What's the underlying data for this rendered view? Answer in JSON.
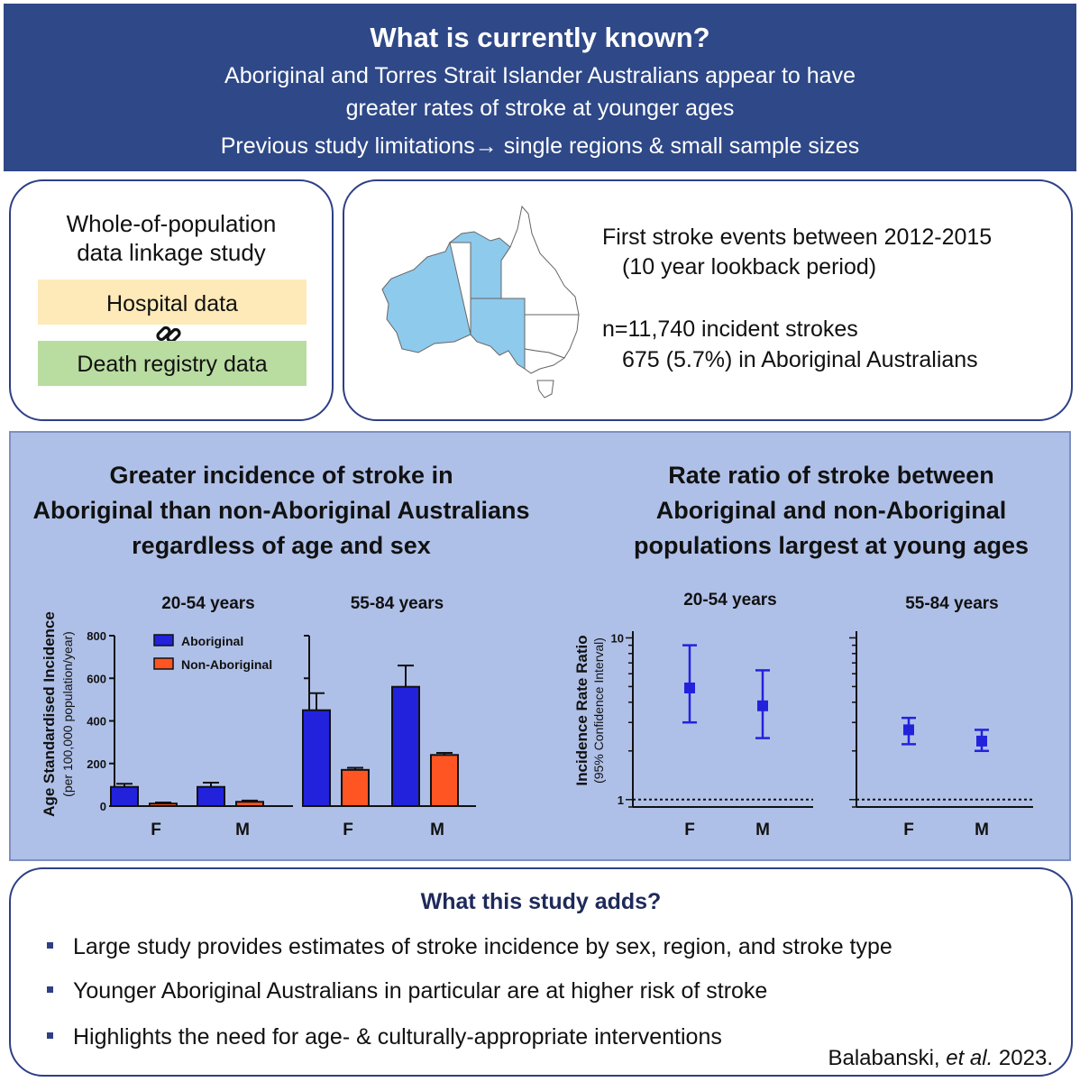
{
  "header": {
    "title": "What is currently known?",
    "line1": "Aboriginal and Torres Strait Islander Australians appear to have",
    "line2": "greater rates of stroke at younger ages",
    "line3": "Previous study limitations→ single regions & small sample sizes"
  },
  "study": {
    "title_line1": "Whole-of-population",
    "title_line2": "data linkage study",
    "hospital": "Hospital data",
    "death": "Death registry data",
    "link_icon": "link-icon",
    "hospital_color": "#fdeab8",
    "death_color": "#b9dca0"
  },
  "events": {
    "line1": "First stroke events between 2012-2015",
    "line2": "(10 year lookback period)",
    "line3": "n=11,740 incident strokes",
    "line4": "675 (5.7%) in Aboriginal Australians",
    "map_icon": "australia-map-icon",
    "map_highlight_color": "#8ecaec"
  },
  "incidence_panel": {
    "title_line1": "Greater incidence of stroke in",
    "title_line2": "Aboriginal than non-Aboriginal Australians",
    "title_line3": "regardless of age and sex"
  },
  "ratio_panel": {
    "title_line1": "Rate ratio of stroke between",
    "title_line2": "Aboriginal and non-Aboriginal",
    "title_line3": "populations largest at young ages"
  },
  "chart_data": [
    {
      "type": "bar",
      "ylabel": "Age Standardised Incidence",
      "ylabel_sub": "(per 100,000 population/year)",
      "ylim": [
        0,
        800
      ],
      "yticks": [
        "0",
        "200",
        "400",
        "600",
        "800"
      ],
      "legend": [
        "Aboriginal",
        "Non-Aboriginal"
      ],
      "colors": [
        "#2222dd",
        "#ff5522"
      ],
      "panels": [
        {
          "title": "20-54 years",
          "categories": [
            "F",
            "M"
          ],
          "series": [
            {
              "name": "Aboriginal",
              "values": [
                90,
                90
              ],
              "err": [
                105,
                110
              ]
            },
            {
              "name": "Non-Aboriginal",
              "values": [
                12,
                20
              ],
              "err": [
                17,
                26
              ]
            }
          ]
        },
        {
          "title": "55-84 years",
          "categories": [
            "F",
            "M"
          ],
          "series": [
            {
              "name": "Aboriginal",
              "values": [
                450,
                560
              ],
              "err": [
                530,
                660
              ]
            },
            {
              "name": "Non-Aboriginal",
              "values": [
                170,
                240
              ],
              "err": [
                180,
                250
              ]
            }
          ]
        }
      ]
    },
    {
      "type": "scatter",
      "ylabel": "Incidence Rate Ratio",
      "ylabel_sub": "(95% Confidence Interval)",
      "yscale": "log",
      "ylim": [
        0.9,
        11
      ],
      "yticks": [
        "1",
        "10"
      ],
      "reference_line": 1,
      "color": "#2222dd",
      "panels": [
        {
          "title": "20-54 years",
          "categories": [
            "F",
            "M"
          ],
          "values": [
            4.9,
            3.8
          ],
          "lower": [
            3.0,
            2.4
          ],
          "upper": [
            9.0,
            6.3
          ]
        },
        {
          "title": "55-84 years",
          "categories": [
            "F",
            "M"
          ],
          "values": [
            2.7,
            2.3
          ],
          "lower": [
            2.2,
            2.0
          ],
          "upper": [
            3.2,
            2.7
          ]
        }
      ]
    }
  ],
  "adds": {
    "title": "What this study adds?",
    "bullets": [
      "Large study provides estimates of stroke incidence by sex, region, and stroke type",
      "Younger Aboriginal Australians in particular are at higher risk of stroke",
      "Highlights the need for age- & culturally-appropriate interventions"
    ],
    "citation_prefix": "Balabanski, ",
    "citation_italic": "et al.",
    "citation_suffix": " 2023."
  }
}
